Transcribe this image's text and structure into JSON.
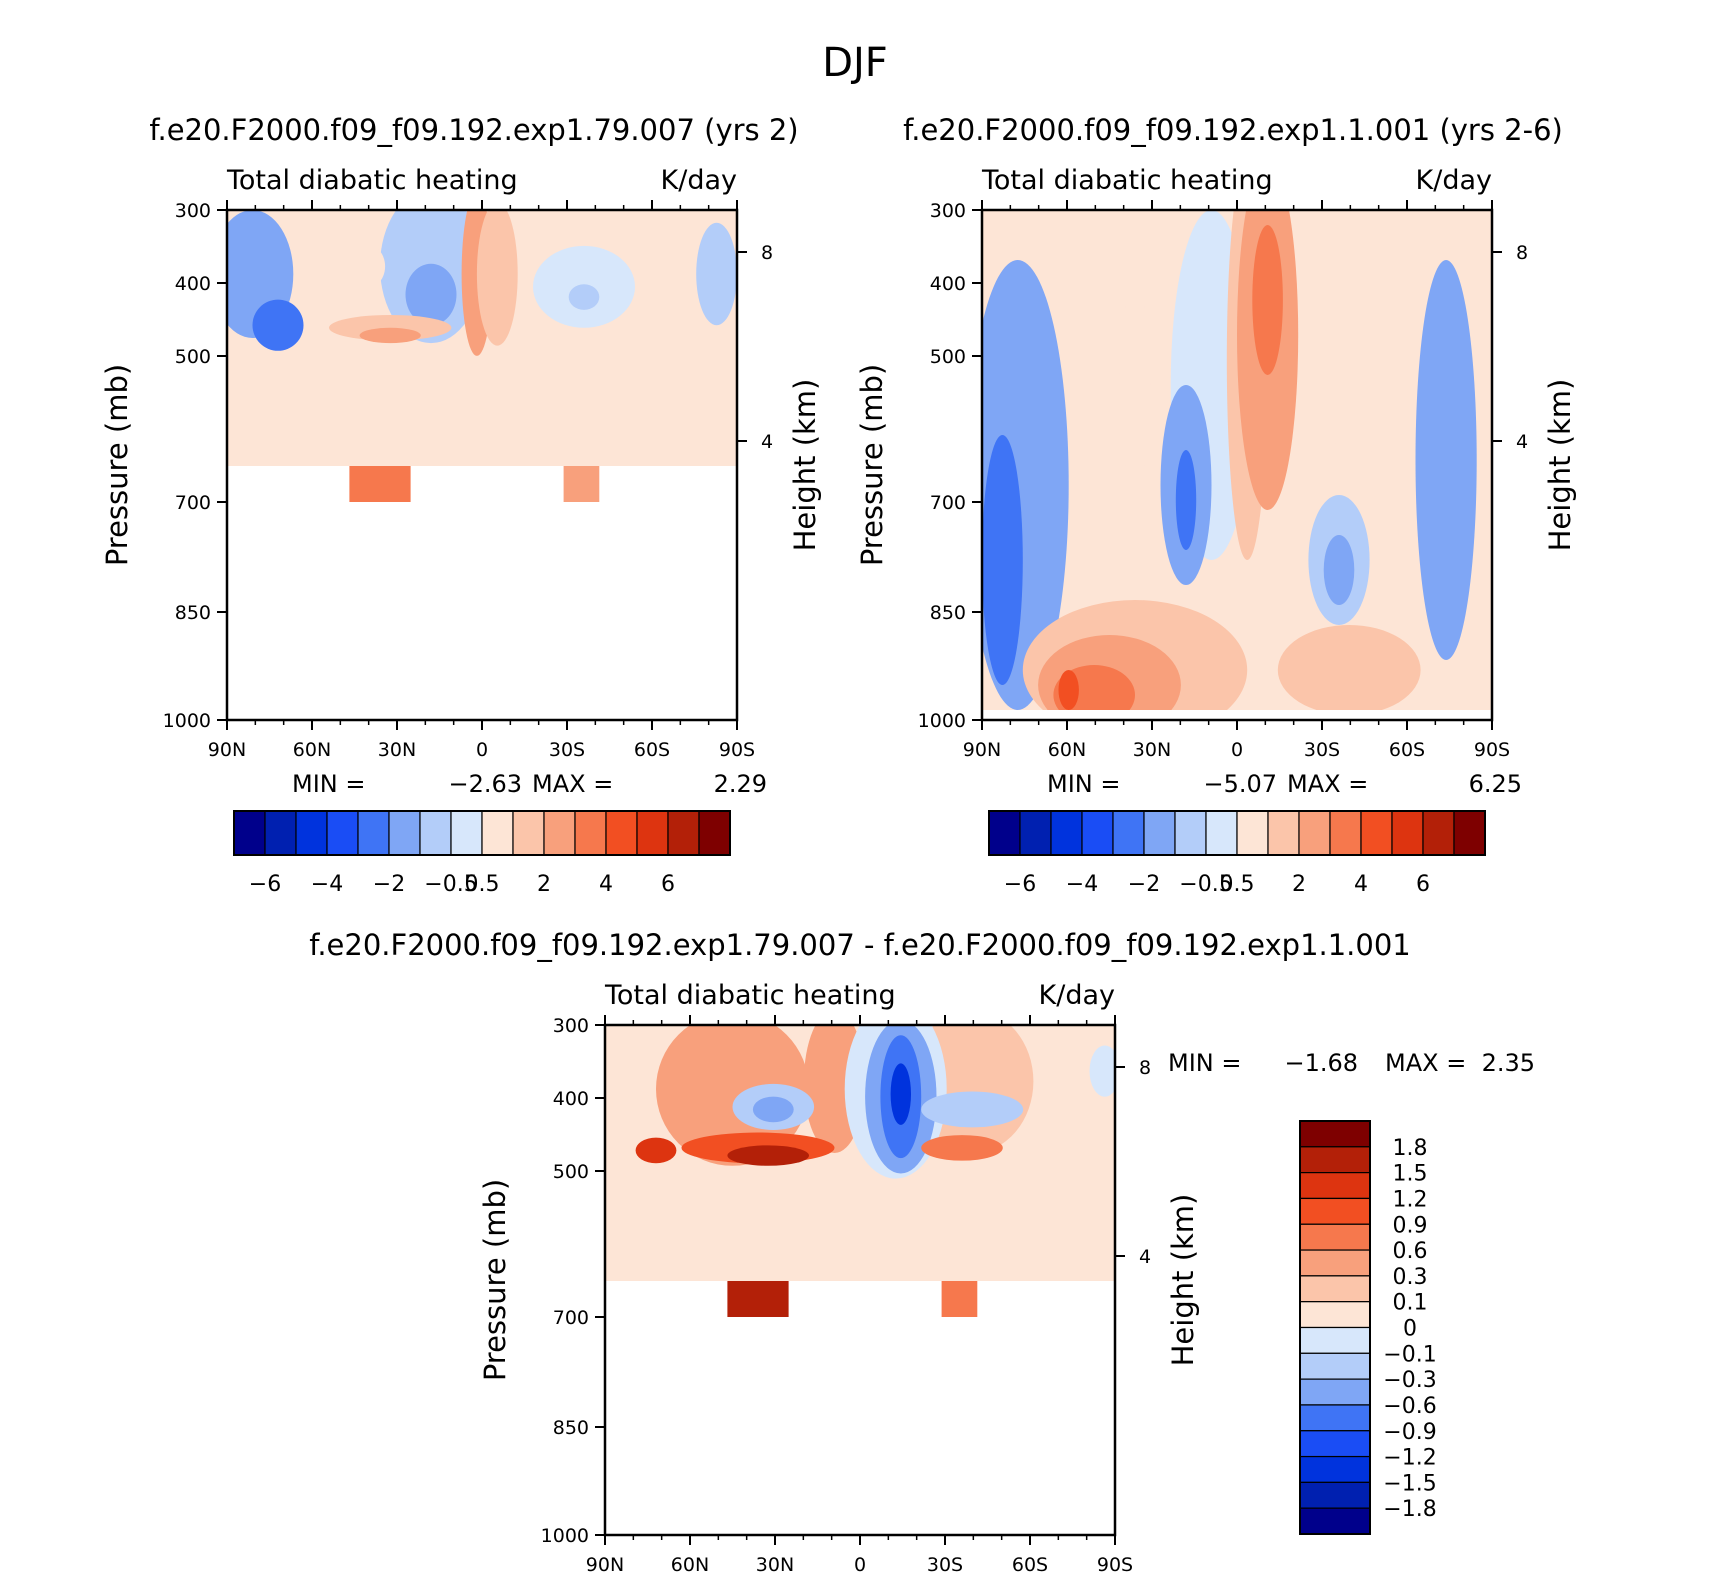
{
  "figure": {
    "title": "DJF"
  },
  "chart_data": [
    {
      "type": "heatmap",
      "panel": "left",
      "case_title": "f.e20.F2000.f09_f09.192.exp1.79.007 (yrs 2)",
      "subtitle_left": "Total diabatic heating",
      "subtitle_right": "K/day",
      "xlabel": "",
      "ylabel": "Pressure (mb)",
      "ylabel_right": "Height (km)",
      "x_ticks": [
        "90N",
        "60N",
        "30N",
        "0",
        "30S",
        "60S",
        "90S"
      ],
      "y_ticks": [
        "300",
        "400",
        "500",
        "700",
        "850",
        "1000"
      ],
      "height_ticks": [
        "8",
        "4"
      ],
      "xlim": [
        90,
        -90
      ],
      "ylim": [
        1000,
        300
      ],
      "stats": {
        "min_label": "MIN =",
        "min": "-2.63",
        "max_label": "MAX =",
        "max": "2.29"
      },
      "colorbar": {
        "levels": [
          -6,
          -5,
          -4,
          -3,
          -2,
          -1,
          -0.5,
          0,
          0.5,
          1,
          2,
          3,
          4,
          5,
          6
        ],
        "labels": [
          "-6",
          "-4",
          "-2",
          "-0.5",
          "0.5",
          "2",
          "4",
          "6"
        ],
        "colors": [
          "#00008b",
          "#0020b0",
          "#0033dd",
          "#1a4df5",
          "#3f74f5",
          "#7fa6f5",
          "#b3cdf9",
          "#d7e7fb",
          "#fde5d6",
          "#fbc5aa",
          "#f8a07c",
          "#f6784d",
          "#f24f22",
          "#dd3410",
          "#b32008",
          "#7e0000"
        ]
      }
    },
    {
      "type": "heatmap",
      "panel": "right",
      "case_title": "f.e20.F2000.f09_f09.192.exp1.1.001 (yrs 2-6)",
      "subtitle_left": "Total diabatic heating",
      "subtitle_right": "K/day",
      "xlabel": "",
      "ylabel": "Pressure (mb)",
      "ylabel_right": "Height (km)",
      "x_ticks": [
        "90N",
        "60N",
        "30N",
        "0",
        "30S",
        "60S",
        "90S"
      ],
      "y_ticks": [
        "300",
        "400",
        "500",
        "700",
        "850",
        "1000"
      ],
      "height_ticks": [
        "8",
        "4"
      ],
      "xlim": [
        90,
        -90
      ],
      "ylim": [
        1000,
        300
      ],
      "stats": {
        "min_label": "MIN =",
        "min": "-5.07",
        "max_label": "MAX =",
        "max": "6.25"
      },
      "colorbar": {
        "levels": [
          -6,
          -5,
          -4,
          -3,
          -2,
          -1,
          -0.5,
          0,
          0.5,
          1,
          2,
          3,
          4,
          5,
          6
        ],
        "labels": [
          "-6",
          "-4",
          "-2",
          "-0.5",
          "0.5",
          "2",
          "4",
          "6"
        ],
        "colors": [
          "#00008b",
          "#0020b0",
          "#0033dd",
          "#1a4df5",
          "#3f74f5",
          "#7fa6f5",
          "#b3cdf9",
          "#d7e7fb",
          "#fde5d6",
          "#fbc5aa",
          "#f8a07c",
          "#f6784d",
          "#f24f22",
          "#dd3410",
          "#b32008",
          "#7e0000"
        ]
      }
    },
    {
      "type": "heatmap",
      "panel": "difference",
      "case_title": "f.e20.F2000.f09_f09.192.exp1.79.007 - f.e20.F2000.f09_f09.192.exp1.1.001",
      "subtitle_left": "Total diabatic heating",
      "subtitle_right": "K/day",
      "xlabel": "",
      "ylabel": "Pressure (mb)",
      "ylabel_right": "Height (km)",
      "x_ticks": [
        "90N",
        "60N",
        "30N",
        "0",
        "30S",
        "60S",
        "90S"
      ],
      "y_ticks": [
        "300",
        "400",
        "500",
        "700",
        "850",
        "1000"
      ],
      "height_ticks": [
        "8",
        "4"
      ],
      "xlim": [
        90,
        -90
      ],
      "ylim": [
        1000,
        300
      ],
      "stats": {
        "min_label": "MIN =",
        "min": "-1.68",
        "max_label": "MAX =",
        "max": "2.35"
      },
      "colorbar": {
        "levels": [
          1.8,
          1.5,
          1.2,
          0.9,
          0.6,
          0.3,
          0.1,
          0,
          -0.1,
          -0.3,
          -0.6,
          -0.9,
          -1.2,
          -1.5,
          -1.8
        ],
        "labels": [
          "1.8",
          "1.5",
          "1.2",
          "0.9",
          "0.6",
          "0.3",
          "0.1",
          "0",
          "−0.1",
          "−0.3",
          "−0.6",
          "−0.9",
          "−1.2",
          "−1.5",
          "−1.8"
        ],
        "colors": [
          "#7e0000",
          "#b32008",
          "#dd3410",
          "#f24f22",
          "#f6784d",
          "#f8a07c",
          "#fbc5aa",
          "#fde5d6",
          "#d7e7fb",
          "#b3cdf9",
          "#7fa6f5",
          "#3f74f5",
          "#1a4df5",
          "#0033dd",
          "#0020b0",
          "#00008b"
        ]
      }
    }
  ]
}
